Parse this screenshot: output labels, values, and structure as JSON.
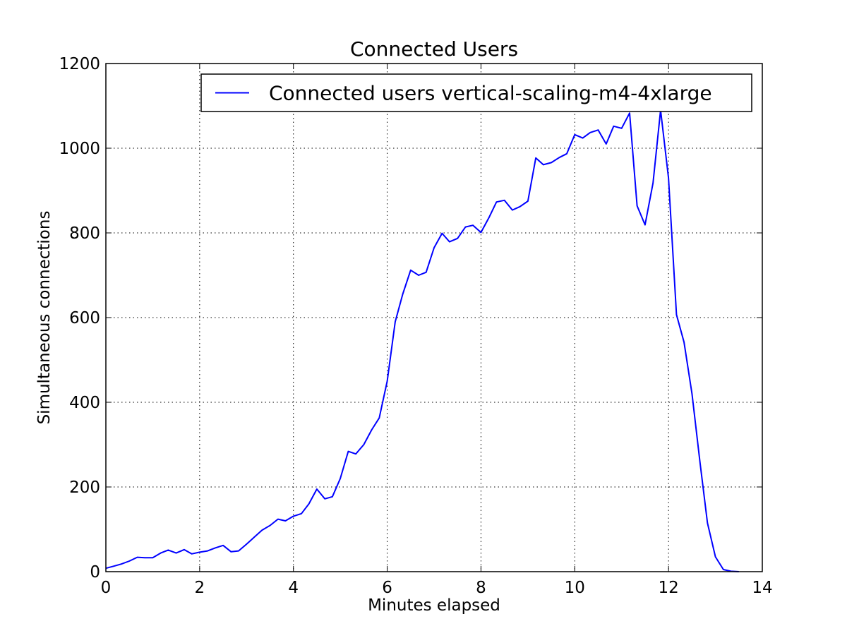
{
  "chart_data": {
    "type": "line",
    "title": "Connected Users",
    "xlabel": "Minutes elapsed",
    "ylabel": "Simultaneous connections",
    "xlim": [
      0,
      14
    ],
    "ylim": [
      0,
      1200
    ],
    "x_ticks": [
      "0",
      "2",
      "4",
      "6",
      "8",
      "10",
      "12",
      "14"
    ],
    "y_ticks": [
      "0",
      "200",
      "400",
      "600",
      "800",
      "1000",
      "1200"
    ],
    "grid": true,
    "legend_position": "top-right",
    "series": [
      {
        "name": "Connected users vertical-scaling-m4-4xlarge",
        "color": "#0000ff",
        "x": [
          0,
          0.17,
          0.33,
          0.5,
          0.67,
          0.83,
          1.0,
          1.17,
          1.33,
          1.5,
          1.67,
          1.83,
          2.0,
          2.17,
          2.33,
          2.5,
          2.67,
          2.83,
          3.0,
          3.17,
          3.33,
          3.5,
          3.67,
          3.83,
          4.0,
          4.17,
          4.33,
          4.5,
          4.67,
          4.83,
          5.0,
          5.17,
          5.33,
          5.5,
          5.67,
          5.83,
          6.0,
          6.17,
          6.33,
          6.5,
          6.67,
          6.83,
          7.0,
          7.17,
          7.33,
          7.5,
          7.67,
          7.83,
          8.0,
          8.17,
          8.33,
          8.5,
          8.67,
          8.83,
          9.0,
          9.17,
          9.33,
          9.5,
          9.67,
          9.83,
          10.0,
          10.17,
          10.33,
          10.5,
          10.67,
          10.83,
          11.0,
          11.17,
          11.33,
          11.5,
          11.67,
          11.83,
          12.0,
          12.17,
          12.33,
          12.5,
          12.67,
          12.83,
          13.0,
          13.17,
          13.33,
          13.5
        ],
        "y": [
          8,
          13,
          18,
          25,
          34,
          33,
          33,
          44,
          51,
          44,
          52,
          42,
          46,
          49,
          56,
          62,
          47,
          49,
          65,
          82,
          98,
          109,
          124,
          120,
          131,
          137,
          160,
          195,
          172,
          177,
          220,
          284,
          278,
          300,
          335,
          363,
          450,
          590,
          655,
          712,
          700,
          707,
          765,
          799,
          779,
          787,
          814,
          818,
          801,
          836,
          873,
          877,
          854,
          862,
          875,
          977,
          961,
          966,
          978,
          987,
          1032,
          1024,
          1037,
          1043,
          1010,
          1052,
          1047,
          1083,
          864,
          819,
          918,
          1090,
          930,
          607,
          542,
          420,
          260,
          115,
          35,
          5,
          1,
          0
        ]
      }
    ]
  }
}
